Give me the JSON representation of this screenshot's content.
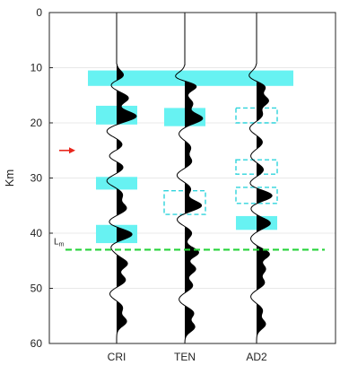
{
  "chart_data": {
    "type": "line",
    "title": "",
    "xlabel": "",
    "ylabel": "Km",
    "ylim": [
      0,
      60
    ],
    "y_direction": "down",
    "yticks": [
      0,
      10,
      20,
      30,
      40,
      50,
      60
    ],
    "grid": "y",
    "series": [
      {
        "name": "CRI",
        "peaks": [
          {
            "depth": 11.5,
            "amp": 0.4
          },
          {
            "depth": 13.0,
            "amp": -0.35
          },
          {
            "depth": 15.5,
            "amp": 0.6
          },
          {
            "depth": 18.8,
            "amp": 1.0
          },
          {
            "depth": 21.5,
            "amp": -0.5
          },
          {
            "depth": 24.0,
            "amp": 0.3
          },
          {
            "depth": 26.0,
            "amp": -0.4
          },
          {
            "depth": 28.0,
            "amp": 0.35
          },
          {
            "depth": 30.5,
            "amp": -0.5
          },
          {
            "depth": 33.0,
            "amp": 0.3
          },
          {
            "depth": 35.5,
            "amp": 0.5
          },
          {
            "depth": 38.0,
            "amp": -0.4
          },
          {
            "depth": 40.2,
            "amp": 0.8
          },
          {
            "depth": 42.5,
            "amp": -0.3
          },
          {
            "depth": 45.5,
            "amp": 0.55
          },
          {
            "depth": 48.5,
            "amp": 0.45
          },
          {
            "depth": 51.0,
            "amp": -0.35
          },
          {
            "depth": 53.5,
            "amp": 0.3
          },
          {
            "depth": 56.0,
            "amp": 0.5
          }
        ]
      },
      {
        "name": "TEN",
        "peaks": [
          {
            "depth": 11.8,
            "amp": -0.6
          },
          {
            "depth": 13.2,
            "amp": 0.7
          },
          {
            "depth": 16.5,
            "amp": 0.4
          },
          {
            "depth": 19.2,
            "amp": 0.9
          },
          {
            "depth": 22.0,
            "amp": -0.3
          },
          {
            "depth": 24.5,
            "amp": 0.3
          },
          {
            "depth": 27.0,
            "amp": 0.35
          },
          {
            "depth": 29.5,
            "amp": -0.4
          },
          {
            "depth": 32.0,
            "amp": 0.3
          },
          {
            "depth": 35.0,
            "amp": 0.85
          },
          {
            "depth": 37.5,
            "amp": -0.4
          },
          {
            "depth": 40.0,
            "amp": 0.35
          },
          {
            "depth": 43.5,
            "amp": 0.7
          },
          {
            "depth": 46.5,
            "amp": 0.55
          },
          {
            "depth": 49.5,
            "amp": 0.4
          },
          {
            "depth": 52.0,
            "amp": -0.3
          },
          {
            "depth": 54.5,
            "amp": 0.45
          },
          {
            "depth": 57.0,
            "amp": 0.5
          }
        ]
      },
      {
        "name": "AD2",
        "peaks": [
          {
            "depth": 11.5,
            "amp": -0.4
          },
          {
            "depth": 13.5,
            "amp": 0.45
          },
          {
            "depth": 16.0,
            "amp": 0.6
          },
          {
            "depth": 18.5,
            "amp": 0.3
          },
          {
            "depth": 21.0,
            "amp": -0.35
          },
          {
            "depth": 23.5,
            "amp": 0.3
          },
          {
            "depth": 26.0,
            "amp": -0.3
          },
          {
            "depth": 28.5,
            "amp": 0.35
          },
          {
            "depth": 31.0,
            "amp": -0.35
          },
          {
            "depth": 33.2,
            "amp": 0.8
          },
          {
            "depth": 35.5,
            "amp": -0.3
          },
          {
            "depth": 38.2,
            "amp": 0.7
          },
          {
            "depth": 41.0,
            "amp": -0.3
          },
          {
            "depth": 43.8,
            "amp": 0.65
          },
          {
            "depth": 46.5,
            "amp": 0.45
          },
          {
            "depth": 49.0,
            "amp": 0.4
          },
          {
            "depth": 51.5,
            "amp": -0.3
          },
          {
            "depth": 54.0,
            "amp": 0.3
          },
          {
            "depth": 56.5,
            "amp": 0.45
          }
        ]
      }
    ],
    "highlights": [
      {
        "trace": "all",
        "y0": 10.5,
        "y1": 13.3,
        "style": "filled"
      },
      {
        "trace": "CRI",
        "y0": 16.9,
        "y1": 20.3,
        "style": "filled"
      },
      {
        "trace": "TEN",
        "y0": 17.3,
        "y1": 20.6,
        "style": "filled"
      },
      {
        "trace": "AD2",
        "y0": 17.3,
        "y1": 20.0,
        "style": "dashed"
      },
      {
        "trace": "CRI",
        "y0": 29.8,
        "y1": 32.1,
        "style": "filled"
      },
      {
        "trace": "AD2",
        "y0": 26.7,
        "y1": 29.3,
        "style": "dashed"
      },
      {
        "trace": "TEN",
        "y0": 32.3,
        "y1": 36.6,
        "style": "dashed"
      },
      {
        "trace": "AD2",
        "y0": 31.7,
        "y1": 34.6,
        "style": "dashed"
      },
      {
        "trace": "AD2",
        "y0": 36.9,
        "y1": 39.4,
        "style": "filled"
      },
      {
        "trace": "CRI",
        "y0": 38.5,
        "y1": 41.8,
        "style": "filled"
      }
    ],
    "annotations": [
      {
        "kind": "arrow",
        "depth": 25.0,
        "color": "#e8261c"
      },
      {
        "kind": "hline",
        "depth": 43.0,
        "label": "L",
        "subscript": "m",
        "color": "#27d33a",
        "style": "dashed"
      }
    ],
    "colors": {
      "highlight": "#67f2f2",
      "highlight_edge": "#2fd4dc",
      "trace": "#000000",
      "grid": "#e8e8e8"
    }
  }
}
